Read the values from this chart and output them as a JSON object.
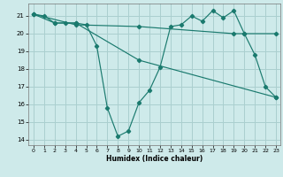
{
  "xlabel": "Humidex (Indice chaleur)",
  "background_color": "#ceeaea",
  "grid_color": "#aacfcf",
  "line_color": "#1a7a6e",
  "xlim": [
    -0.5,
    23.4
  ],
  "ylim": [
    13.7,
    21.7
  ],
  "yticks": [
    14,
    15,
    16,
    17,
    18,
    19,
    20,
    21
  ],
  "xticks": [
    0,
    1,
    2,
    3,
    4,
    5,
    6,
    7,
    8,
    9,
    10,
    11,
    12,
    13,
    14,
    15,
    16,
    17,
    18,
    19,
    20,
    21,
    22,
    23
  ],
  "series1": [
    [
      0,
      21.1
    ],
    [
      1,
      21.0
    ],
    [
      2,
      20.6
    ],
    [
      3,
      20.6
    ],
    [
      4,
      20.6
    ],
    [
      5,
      20.5
    ],
    [
      6,
      19.3
    ],
    [
      7,
      15.8
    ],
    [
      8,
      14.2
    ],
    [
      9,
      14.5
    ],
    [
      10,
      16.1
    ],
    [
      11,
      16.8
    ],
    [
      12,
      18.1
    ],
    [
      13,
      20.4
    ],
    [
      14,
      20.5
    ],
    [
      15,
      21.0
    ],
    [
      16,
      20.7
    ],
    [
      17,
      21.3
    ],
    [
      18,
      20.9
    ],
    [
      19,
      21.3
    ],
    [
      20,
      20.0
    ],
    [
      21,
      18.8
    ],
    [
      22,
      17.0
    ],
    [
      23,
      16.4
    ]
  ],
  "series2": [
    [
      0,
      21.1
    ],
    [
      2,
      20.6
    ],
    [
      4,
      20.6
    ],
    [
      10,
      18.5
    ],
    [
      23,
      16.4
    ]
  ],
  "series3": [
    [
      0,
      21.1
    ],
    [
      4,
      20.5
    ],
    [
      10,
      20.4
    ],
    [
      19,
      20.0
    ],
    [
      20,
      20.0
    ],
    [
      23,
      20.0
    ]
  ]
}
